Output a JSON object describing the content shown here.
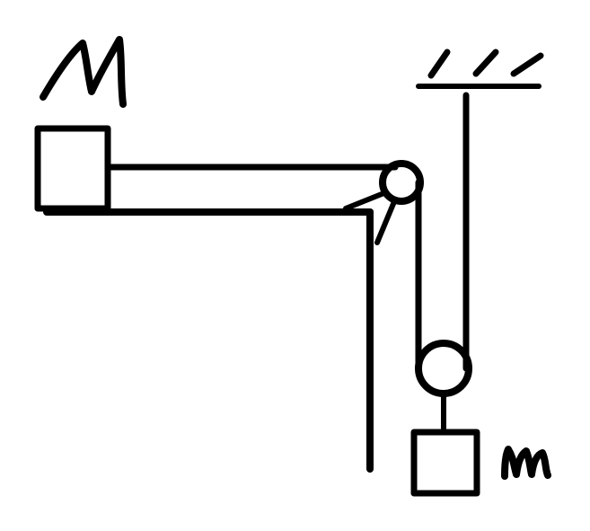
{
  "diagram": {
    "labels": {
      "table_mass": "M",
      "hanging_mass": "m"
    },
    "colors": {
      "ink": "#000000",
      "background": "#ffffff"
    }
  }
}
